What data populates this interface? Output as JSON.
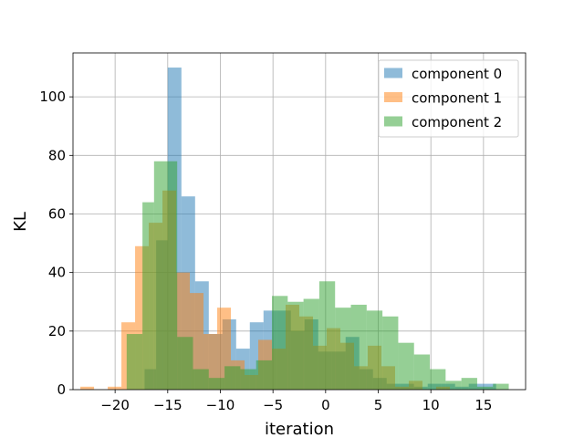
{
  "chart_data": {
    "type": "bar",
    "subtype": "overlapping-histogram",
    "title": "",
    "xlabel": "iteration",
    "ylabel": "KL",
    "xlim": [
      -24.0,
      19.0
    ],
    "ylim": [
      0,
      115
    ],
    "xticks": [
      -20,
      -15,
      -10,
      -5,
      0,
      5,
      10,
      15
    ],
    "xtick_labels": [
      "−20",
      "−15",
      "−10",
      "−5",
      "0",
      "5",
      "10",
      "15"
    ],
    "yticks": [
      0,
      20,
      40,
      60,
      80,
      100
    ],
    "ytick_labels": [
      "0",
      "20",
      "40",
      "60",
      "80",
      "100"
    ],
    "grid": true,
    "legend_position": "top-right",
    "alpha": 0.5,
    "series": [
      {
        "name": "component 0",
        "color": "#1f77b4",
        "bins": [
          {
            "x0": -17.2,
            "x1": -16.1,
            "count": 7
          },
          {
            "x0": -16.1,
            "x1": -15.0,
            "count": 51
          },
          {
            "x0": -15.0,
            "x1": -13.7,
            "count": 110
          },
          {
            "x0": -13.7,
            "x1": -12.4,
            "count": 66
          },
          {
            "x0": -12.4,
            "x1": -11.1,
            "count": 37
          },
          {
            "x0": -11.1,
            "x1": -9.8,
            "count": 19
          },
          {
            "x0": -9.8,
            "x1": -8.5,
            "count": 24
          },
          {
            "x0": -8.5,
            "x1": -7.2,
            "count": 14
          },
          {
            "x0": -7.2,
            "x1": -5.9,
            "count": 23
          },
          {
            "x0": -5.9,
            "x1": -4.6,
            "count": 27
          },
          {
            "x0": -4.6,
            "x1": -3.3,
            "count": 27
          },
          {
            "x0": -3.3,
            "x1": -2.0,
            "count": 20
          },
          {
            "x0": -2.0,
            "x1": -0.7,
            "count": 24
          },
          {
            "x0": -0.7,
            "x1": 0.6,
            "count": 13
          },
          {
            "x0": 0.6,
            "x1": 1.9,
            "count": 13
          },
          {
            "x0": 1.9,
            "x1": 3.2,
            "count": 18
          },
          {
            "x0": 3.2,
            "x1": 4.5,
            "count": 7
          },
          {
            "x0": 4.5,
            "x1": 5.8,
            "count": 4
          },
          {
            "x0": 5.8,
            "x1": 7.1,
            "count": 2
          },
          {
            "x0": 7.1,
            "x1": 8.4,
            "count": 2
          },
          {
            "x0": 8.4,
            "x1": 9.7,
            "count": 1
          },
          {
            "x0": 9.7,
            "x1": 11.0,
            "count": 2
          },
          {
            "x0": 11.0,
            "x1": 12.3,
            "count": 2
          },
          {
            "x0": 12.3,
            "x1": 13.6,
            "count": 1
          },
          {
            "x0": 13.6,
            "x1": 14.9,
            "count": 2
          },
          {
            "x0": 14.9,
            "x1": 16.2,
            "count": 2
          }
        ]
      },
      {
        "name": "component 1",
        "color": "#ff7f0e",
        "bins": [
          {
            "x0": -23.3,
            "x1": -22.0,
            "count": 1
          },
          {
            "x0": -22.0,
            "x1": -20.7,
            "count": 0
          },
          {
            "x0": -20.7,
            "x1": -19.4,
            "count": 1
          },
          {
            "x0": -19.4,
            "x1": -18.1,
            "count": 23
          },
          {
            "x0": -18.1,
            "x1": -16.8,
            "count": 49
          },
          {
            "x0": -16.8,
            "x1": -15.5,
            "count": 57
          },
          {
            "x0": -15.5,
            "x1": -14.2,
            "count": 68
          },
          {
            "x0": -14.2,
            "x1": -12.9,
            "count": 40
          },
          {
            "x0": -12.9,
            "x1": -11.6,
            "count": 33
          },
          {
            "x0": -11.6,
            "x1": -10.3,
            "count": 19
          },
          {
            "x0": -10.3,
            "x1": -9.0,
            "count": 28
          },
          {
            "x0": -9.0,
            "x1": -7.7,
            "count": 10
          },
          {
            "x0": -7.7,
            "x1": -6.4,
            "count": 5
          },
          {
            "x0": -6.4,
            "x1": -5.1,
            "count": 17
          },
          {
            "x0": -5.1,
            "x1": -3.8,
            "count": 14
          },
          {
            "x0": -3.8,
            "x1": -2.5,
            "count": 29
          },
          {
            "x0": -2.5,
            "x1": -1.2,
            "count": 25
          },
          {
            "x0": -1.2,
            "x1": 0.1,
            "count": 15
          },
          {
            "x0": 0.1,
            "x1": 1.4,
            "count": 21
          },
          {
            "x0": 1.4,
            "x1": 2.7,
            "count": 16
          },
          {
            "x0": 2.7,
            "x1": 4.0,
            "count": 8
          },
          {
            "x0": 4.0,
            "x1": 5.3,
            "count": 15
          },
          {
            "x0": 5.3,
            "x1": 6.6,
            "count": 8
          },
          {
            "x0": 6.6,
            "x1": 7.9,
            "count": 1
          },
          {
            "x0": 7.9,
            "x1": 9.2,
            "count": 3
          },
          {
            "x0": 9.2,
            "x1": 10.5,
            "count": 0
          },
          {
            "x0": 10.5,
            "x1": 11.8,
            "count": 1
          }
        ]
      },
      {
        "name": "component 2",
        "color": "#2ca02c",
        "bins": [
          {
            "x0": -18.9,
            "x1": -17.4,
            "count": 19
          },
          {
            "x0": -17.4,
            "x1": -16.3,
            "count": 64
          },
          {
            "x0": -16.3,
            "x1": -15.2,
            "count": 78
          },
          {
            "x0": -15.2,
            "x1": -14.1,
            "count": 78
          },
          {
            "x0": -14.1,
            "x1": -12.6,
            "count": 18
          },
          {
            "x0": -12.6,
            "x1": -11.1,
            "count": 7
          },
          {
            "x0": -11.1,
            "x1": -9.6,
            "count": 4
          },
          {
            "x0": -9.6,
            "x1": -8.1,
            "count": 8
          },
          {
            "x0": -8.1,
            "x1": -6.6,
            "count": 7
          },
          {
            "x0": -6.6,
            "x1": -5.1,
            "count": 10
          },
          {
            "x0": -5.1,
            "x1": -3.6,
            "count": 32
          },
          {
            "x0": -3.6,
            "x1": -2.1,
            "count": 30
          },
          {
            "x0": -2.1,
            "x1": -0.6,
            "count": 31
          },
          {
            "x0": -0.6,
            "x1": 0.9,
            "count": 37
          },
          {
            "x0": 0.9,
            "x1": 2.4,
            "count": 28
          },
          {
            "x0": 2.4,
            "x1": 3.9,
            "count": 29
          },
          {
            "x0": 3.9,
            "x1": 5.4,
            "count": 27
          },
          {
            "x0": 5.4,
            "x1": 6.9,
            "count": 25
          },
          {
            "x0": 6.9,
            "x1": 8.4,
            "count": 16
          },
          {
            "x0": 8.4,
            "x1": 9.9,
            "count": 12
          },
          {
            "x0": 9.9,
            "x1": 11.4,
            "count": 7
          },
          {
            "x0": 11.4,
            "x1": 12.9,
            "count": 3
          },
          {
            "x0": 12.9,
            "x1": 14.4,
            "count": 4
          },
          {
            "x0": 14.4,
            "x1": 15.9,
            "count": 1
          },
          {
            "x0": 15.9,
            "x1": 17.4,
            "count": 2
          }
        ]
      }
    ]
  }
}
